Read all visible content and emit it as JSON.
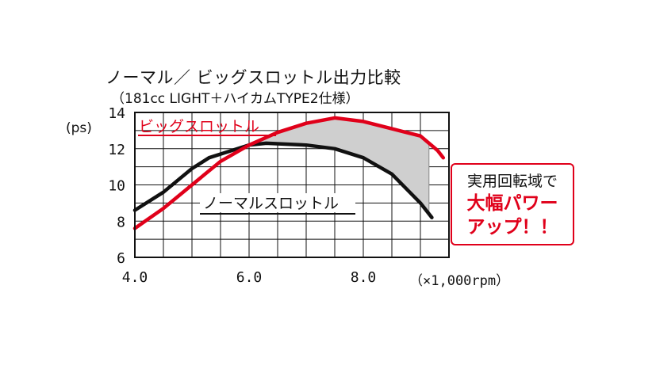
{
  "title": "ノーマル／ ビッグスロットル出力比較",
  "subtitle": "（181cc LIGHT＋ハイカムTYPE2仕様）",
  "callout": {
    "line1": "実用回転域で",
    "line2": "大幅パワー",
    "line3": "アップ！！"
  },
  "chart_data": {
    "type": "line",
    "title": "ノーマル／ ビッグスロットル出力比較",
    "subtitle": "（181cc LIGHT＋ハイカムTYPE2仕様）",
    "ylabel": "(ps)",
    "xlabel": "（×1,000rpm）",
    "xlim": [
      4.0,
      9.5
    ],
    "ylim": [
      6,
      14
    ],
    "x_ticks": [
      "4.0",
      "6.0",
      "8.0"
    ],
    "x_tick_values": [
      4.0,
      6.0,
      8.0
    ],
    "y_ticks": [
      "6",
      "8",
      "10",
      "12",
      "14"
    ],
    "y_tick_values": [
      6,
      8,
      10,
      12,
      14
    ],
    "grid": true,
    "series": [
      {
        "name": "ビッグスロットル",
        "color": "#e0001a",
        "x": [
          4.0,
          4.5,
          5.0,
          5.5,
          6.0,
          6.5,
          7.0,
          7.5,
          8.0,
          8.5,
          9.0,
          9.3,
          9.4
        ],
        "y": [
          7.6,
          8.7,
          10.0,
          11.3,
          12.2,
          12.9,
          13.4,
          13.7,
          13.5,
          13.1,
          12.7,
          11.9,
          11.5
        ]
      },
      {
        "name": "ノーマルスロットル",
        "color": "#111111",
        "x": [
          4.0,
          4.5,
          5.0,
          5.3,
          5.7,
          6.0,
          6.3,
          7.0,
          7.5,
          8.0,
          8.5,
          9.0,
          9.2
        ],
        "y": [
          8.6,
          9.6,
          10.9,
          11.5,
          11.9,
          12.2,
          12.3,
          12.2,
          12.0,
          11.5,
          10.6,
          9.0,
          8.2
        ]
      }
    ],
    "series_labels": [
      "ビッグスロットル",
      "ノーマルスロットル"
    ],
    "shade_color": "#cfcfcf",
    "accent_color": "#e0001a"
  }
}
